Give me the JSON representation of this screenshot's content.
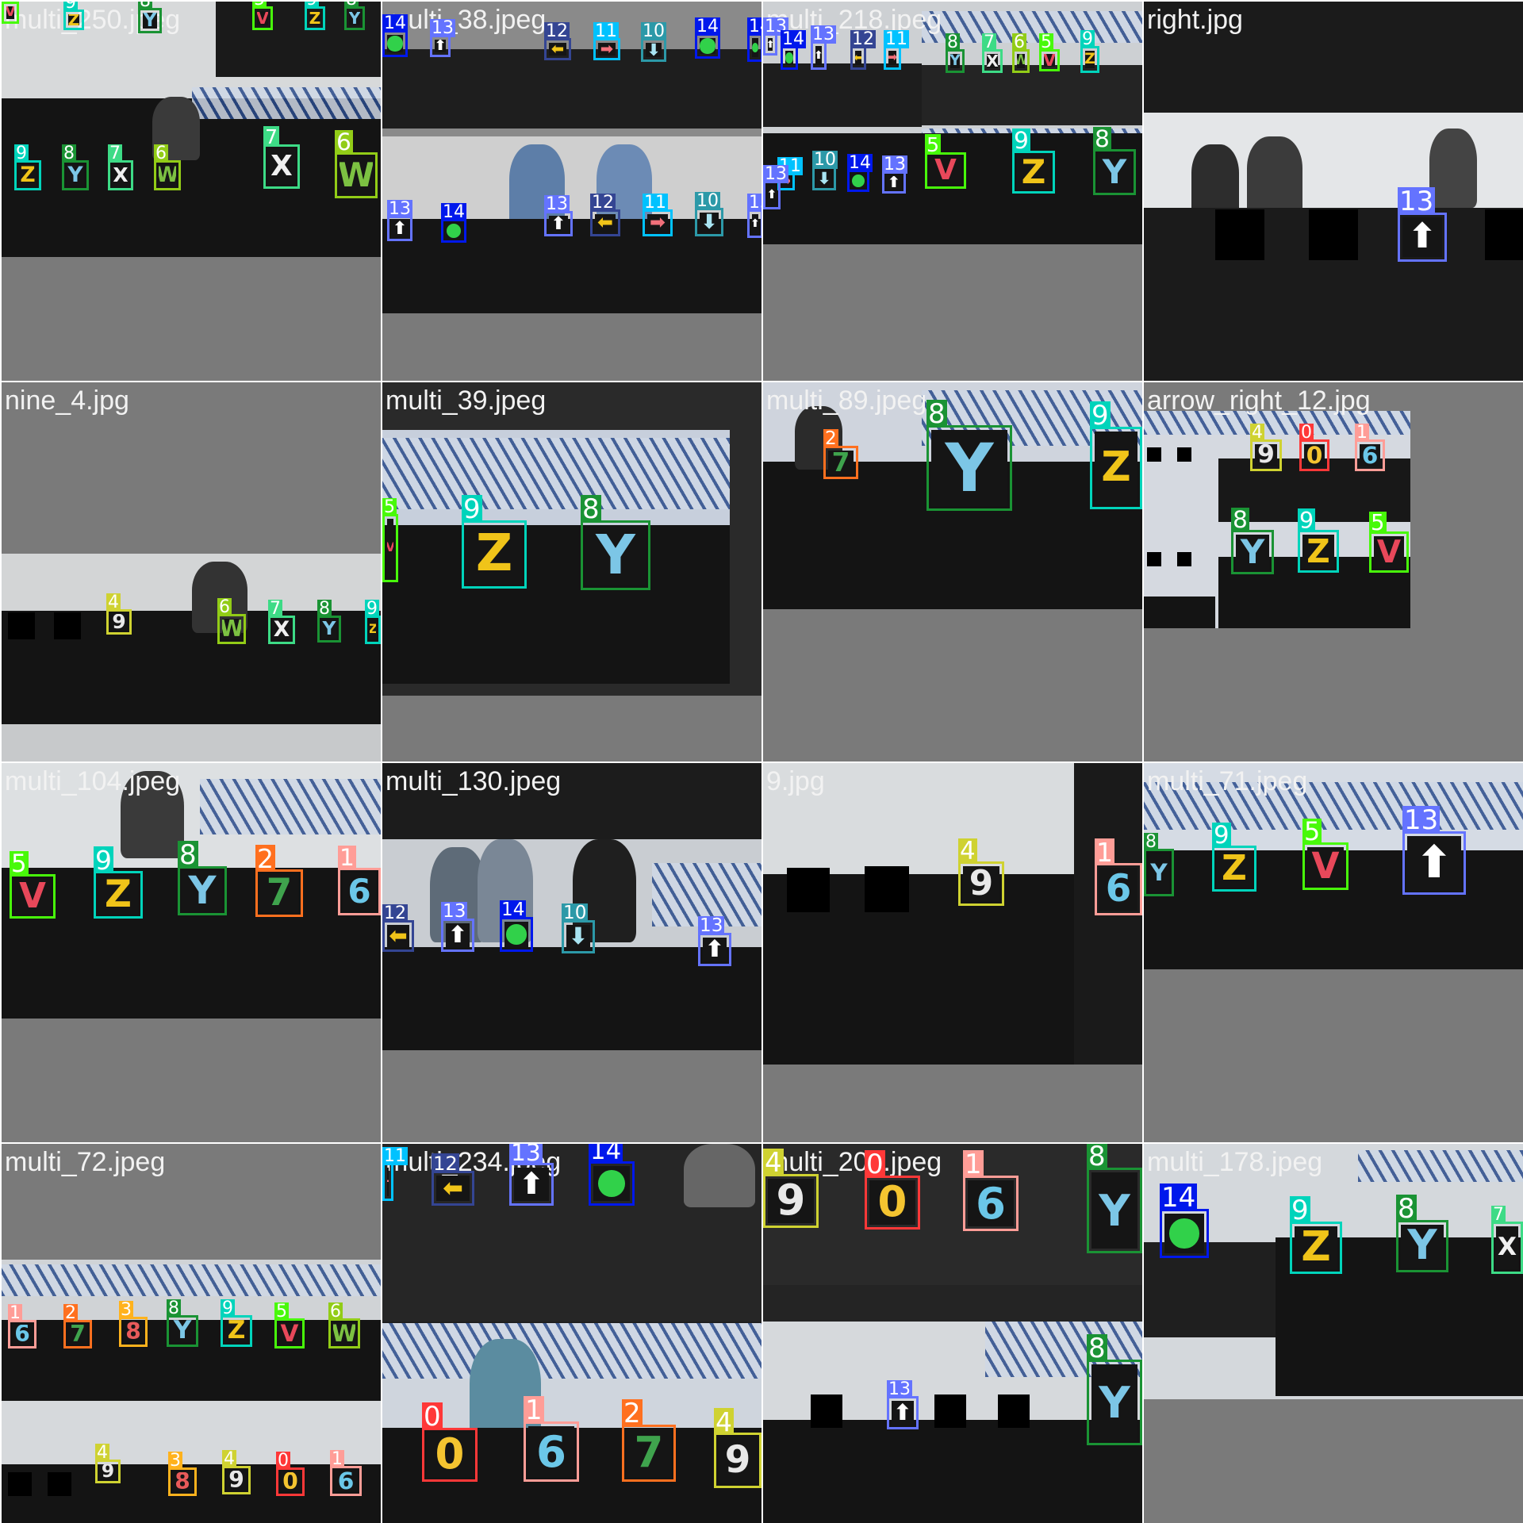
{
  "mosaic": {
    "title": "",
    "classes": {
      "0": {
        "symbol": "0",
        "color": "#ff3838",
        "kind": "digit"
      },
      "1": {
        "symbol": "6",
        "color": "#ff9d97",
        "kind": "digit"
      },
      "2": {
        "symbol": "7",
        "color": "#ff701f",
        "kind": "digit"
      },
      "3": {
        "symbol": "8",
        "color": "#ffb21d",
        "kind": "digit"
      },
      "4": {
        "symbol": "9",
        "color": "#cfd231",
        "kind": "digit"
      },
      "5": {
        "symbol": "V",
        "color": "#48f90a",
        "kind": "letter"
      },
      "6": {
        "symbol": "W",
        "color": "#92cc17",
        "kind": "letter"
      },
      "7": {
        "symbol": "X",
        "color": "#3ddb86",
        "kind": "letter"
      },
      "8": {
        "symbol": "Y",
        "color": "#1a9334",
        "kind": "letter"
      },
      "9": {
        "symbol": "Z",
        "color": "#00d4bb",
        "kind": "letter"
      },
      "10": {
        "symbol": "down-arrow",
        "color": "#2c99a8",
        "kind": "arrow"
      },
      "11": {
        "symbol": "right-arrow",
        "color": "#00c2ff",
        "kind": "arrow"
      },
      "12": {
        "symbol": "left-arrow",
        "color": "#344593",
        "kind": "arrow"
      },
      "13": {
        "symbol": "up-arrow",
        "color": "#6473ff",
        "kind": "arrow"
      },
      "14": {
        "symbol": "circle",
        "color": "#0018ec",
        "kind": "bullseye"
      }
    },
    "tiles": [
      {
        "label": "multi_250.jpeg",
        "ids": [
          "5",
          "9",
          "8",
          "5",
          "9",
          "8",
          "9",
          "8",
          "7",
          "6",
          "7",
          "6"
        ]
      },
      {
        "label": "multi_38.jpeg",
        "ids": [
          "14",
          "13",
          "12",
          "11",
          "10",
          "14",
          "13",
          "14",
          "13",
          "12",
          "11",
          "10",
          "14",
          "13"
        ]
      },
      {
        "label": "multi_218.jpeg",
        "ids": [
          "13",
          "14",
          "13",
          "12",
          "11",
          "8",
          "7",
          "6",
          "5",
          "9",
          "11",
          "10",
          "14",
          "13",
          "13",
          "5",
          "9",
          "8"
        ]
      },
      {
        "label": "right.jpg",
        "ids": [
          "13"
        ]
      },
      {
        "label": "nine_4.jpg",
        "ids": [
          "4",
          "6",
          "7",
          "8",
          "9"
        ]
      },
      {
        "label": "multi_39.jpeg",
        "ids": [
          "5",
          "9",
          "8"
        ]
      },
      {
        "label": "multi_89.jpeg",
        "ids": [
          "2",
          "8",
          "9"
        ]
      },
      {
        "label": "arrow_right_12.jpg",
        "ids": [
          "4",
          "0",
          "1",
          "8",
          "9",
          "5"
        ]
      },
      {
        "label": "multi_104.jpeg",
        "ids": [
          "5",
          "9",
          "8",
          "2",
          "1"
        ]
      },
      {
        "label": "multi_130.jpeg",
        "ids": [
          "12",
          "13",
          "14",
          "10",
          "13"
        ]
      },
      {
        "label": "9.jpg",
        "ids": [
          "4",
          "1"
        ]
      },
      {
        "label": "multi_71.jpeg",
        "ids": [
          "8",
          "9",
          "5",
          "13"
        ]
      },
      {
        "label": "multi_72.jpeg",
        "ids": [
          "1",
          "2",
          "3",
          "8",
          "9",
          "5",
          "6",
          "4",
          "3",
          "4",
          "0",
          "1"
        ]
      },
      {
        "label": "multi_234.jpeg",
        "ids": [
          "11",
          "12",
          "13",
          "14",
          "0",
          "1",
          "2",
          "4"
        ]
      },
      {
        "label": "multi_200.jpeg",
        "ids": [
          "4",
          "0",
          "1",
          "8",
          "13",
          "8"
        ]
      },
      {
        "label": "multi_178.jpeg",
        "ids": [
          "14",
          "9",
          "8",
          "7"
        ]
      }
    ]
  }
}
